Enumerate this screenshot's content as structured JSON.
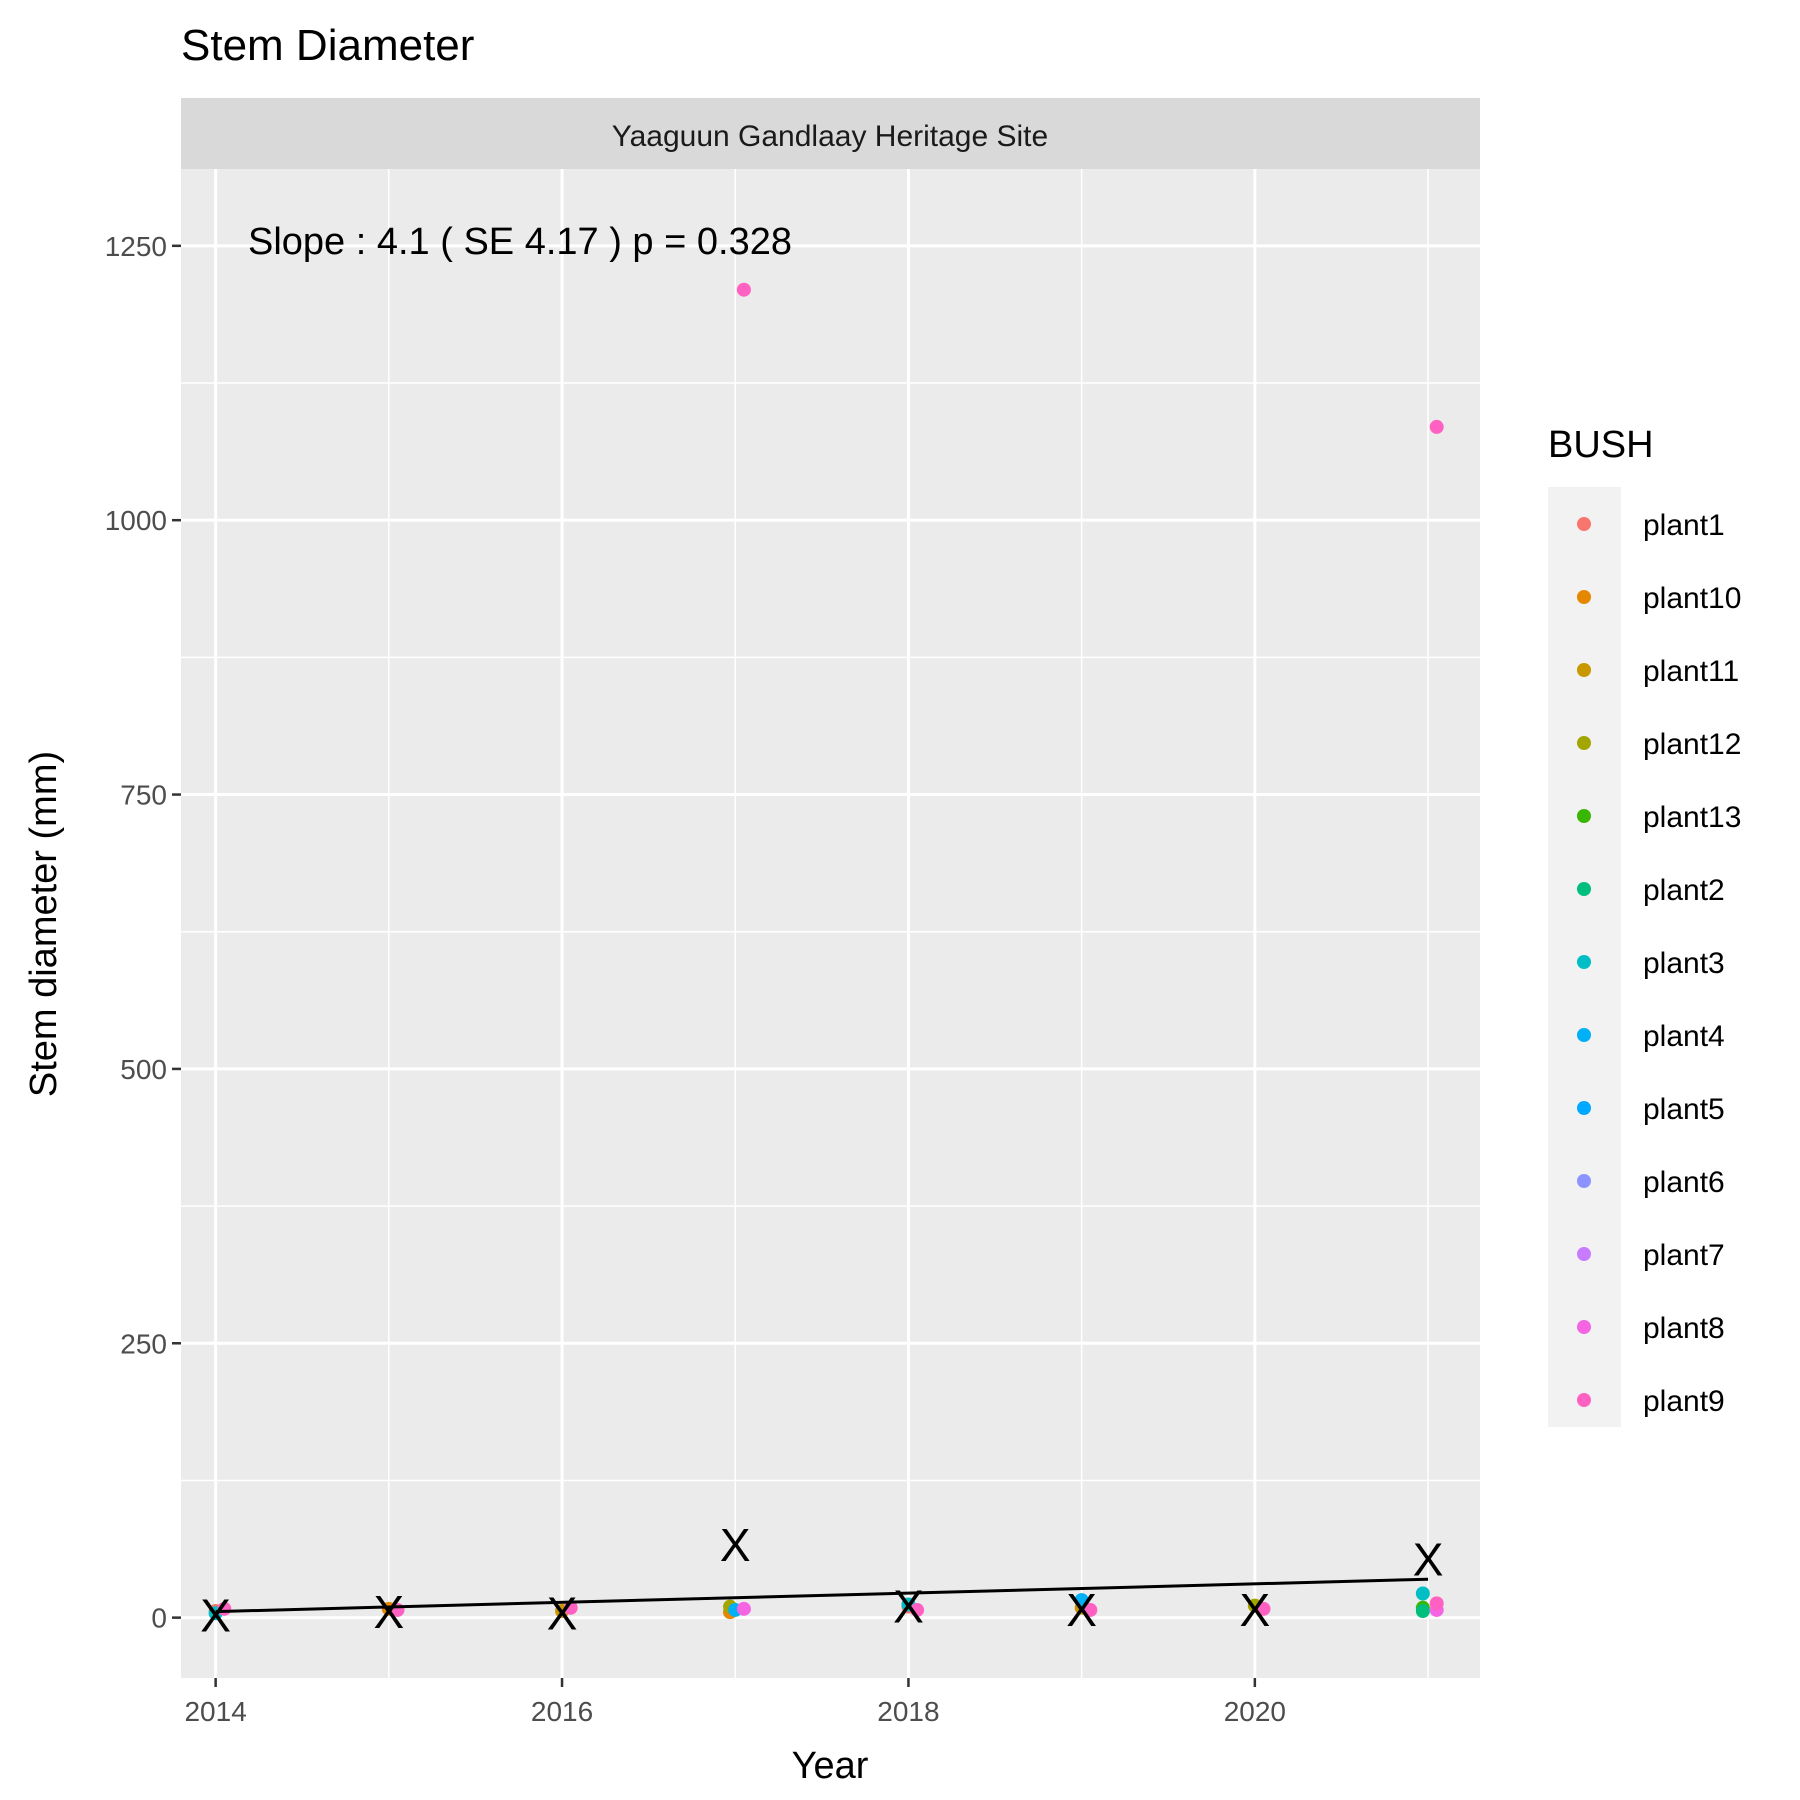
{
  "chart_data": {
    "type": "scatter",
    "title": "Stem Diameter",
    "facet_label": "Yaaguun Gandlaay Heritage Site",
    "xlabel": "Year",
    "ylabel": "Stem diameter (mm)",
    "xlim": [
      2013.8,
      2021.3
    ],
    "ylim": [
      -55,
      1320
    ],
    "x_ticks": [
      2014,
      2016,
      2018,
      2020
    ],
    "x_tick_labels": [
      "2014",
      "2016",
      "2018",
      "2020"
    ],
    "y_ticks": [
      0,
      250,
      500,
      750,
      1000,
      1250
    ],
    "y_tick_labels": [
      "0",
      "250",
      "500",
      "750",
      "1000",
      "1250"
    ],
    "grid": true,
    "legend": {
      "title": "BUSH",
      "position": "right",
      "entries": [
        {
          "name": "plant1",
          "color": "#F8766D"
        },
        {
          "name": "plant10",
          "color": "#E58700"
        },
        {
          "name": "plant11",
          "color": "#C99800"
        },
        {
          "name": "plant12",
          "color": "#A3A500"
        },
        {
          "name": "plant13",
          "color": "#39B600"
        },
        {
          "name": "plant2",
          "color": "#00BF7D"
        },
        {
          "name": "plant3",
          "color": "#00BFC4"
        },
        {
          "name": "plant4",
          "color": "#00B0F6"
        },
        {
          "name": "plant5",
          "color": "#00A9FF"
        },
        {
          "name": "plant6",
          "color": "#8B93FF"
        },
        {
          "name": "plant7",
          "color": "#C77CFF"
        },
        {
          "name": "plant8",
          "color": "#F564E3"
        },
        {
          "name": "plant9",
          "color": "#FF61C3"
        }
      ]
    },
    "points": [
      {
        "x": 2014.0,
        "y": 6,
        "series": "plant1"
      },
      {
        "x": 2014.0,
        "y": 4,
        "series": "plant3"
      },
      {
        "x": 2014.05,
        "y": 8,
        "series": "plant9"
      },
      {
        "x": 2015.0,
        "y": 8,
        "series": "plant10"
      },
      {
        "x": 2015.05,
        "y": 7,
        "series": "plant9"
      },
      {
        "x": 2016.0,
        "y": 6,
        "series": "plant11"
      },
      {
        "x": 2016.05,
        "y": 9,
        "series": "plant9"
      },
      {
        "x": 2016.97,
        "y": 5,
        "series": "plant10"
      },
      {
        "x": 2016.97,
        "y": 10,
        "series": "plant12"
      },
      {
        "x": 2017.0,
        "y": 7,
        "series": "plant4"
      },
      {
        "x": 2017.05,
        "y": 8,
        "series": "plant8"
      },
      {
        "x": 2017.05,
        "y": 1210,
        "series": "plant9"
      },
      {
        "x": 2018.0,
        "y": 10,
        "series": "plant1"
      },
      {
        "x": 2018.0,
        "y": 12,
        "series": "plant3"
      },
      {
        "x": 2018.05,
        "y": 7,
        "series": "plant9"
      },
      {
        "x": 2019.0,
        "y": 9,
        "series": "plant11"
      },
      {
        "x": 2019.0,
        "y": 16,
        "series": "plant4"
      },
      {
        "x": 2019.05,
        "y": 7,
        "series": "plant9"
      },
      {
        "x": 2020.0,
        "y": 11,
        "series": "plant12"
      },
      {
        "x": 2020.05,
        "y": 8,
        "series": "plant9"
      },
      {
        "x": 2020.97,
        "y": 9,
        "series": "plant13"
      },
      {
        "x": 2020.97,
        "y": 6,
        "series": "plant2"
      },
      {
        "x": 2020.97,
        "y": 22,
        "series": "plant3"
      },
      {
        "x": 2021.05,
        "y": 7,
        "series": "plant8"
      },
      {
        "x": 2021.05,
        "y": 13,
        "series": "plant9"
      },
      {
        "x": 2021.05,
        "y": 1085,
        "series": "plant9"
      }
    ],
    "yearly_marks": {
      "label": "X",
      "x": [
        2014,
        2015,
        2016,
        2017,
        2018,
        2019,
        2020,
        2021
      ],
      "y": [
        2,
        5,
        4,
        66,
        10,
        7,
        7,
        53
      ]
    },
    "trend_line": {
      "x": [
        2014,
        2021
      ],
      "y": [
        5.5,
        35
      ]
    },
    "annotation": {
      "text": "Slope :  4.1  ( SE  4.17 ) p = 0.328",
      "x": 2014.0,
      "y": 1210
    }
  }
}
